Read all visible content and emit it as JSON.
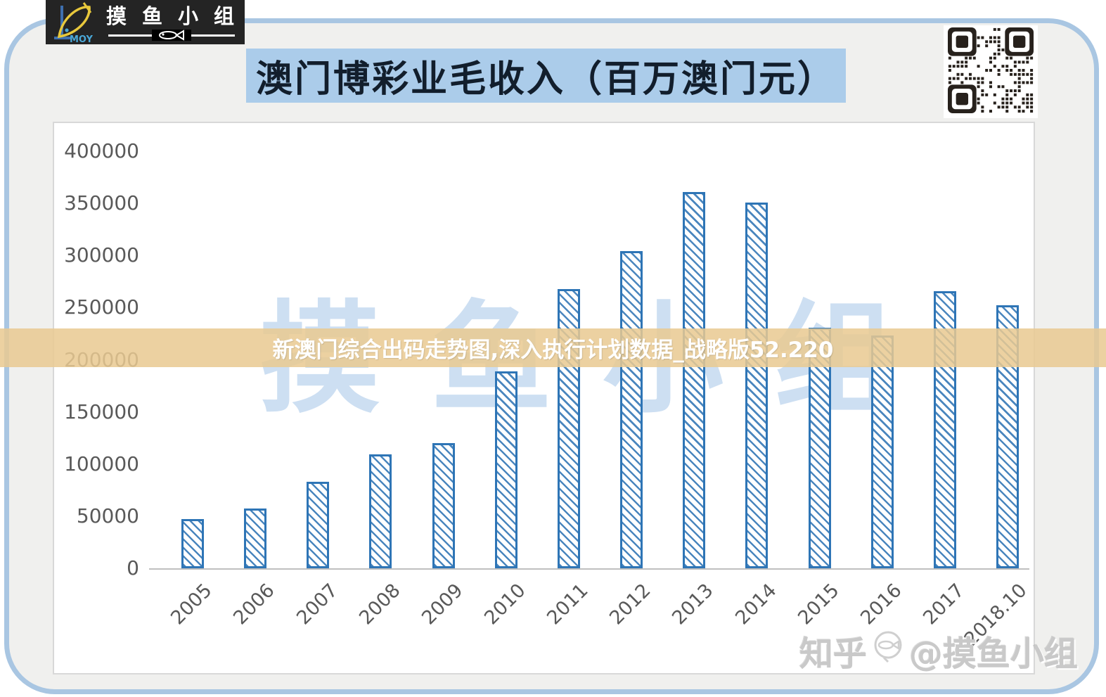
{
  "logo": {
    "brand": "MOYU",
    "group_name": "摸鱼小组"
  },
  "header": {
    "title": "澳门博彩业毛收入（百万澳门元）",
    "title_bg": "#abccea"
  },
  "overlay_banner": {
    "text": "新澳门综合出码走势图,深入执行计划数据_战略版52.220",
    "bg": "#e9c992",
    "text_color": "#ffffff"
  },
  "watermarks": {
    "chart": "摸鱼小组",
    "credit_site": "知乎",
    "credit_handle": "@摸鱼小组"
  },
  "chart_data": {
    "type": "bar",
    "title": "澳门博彩业毛收入（百万澳门元）",
    "categories": [
      "2005",
      "2006",
      "2007",
      "2008",
      "2009",
      "2010",
      "2011",
      "2012",
      "2013",
      "2014",
      "2015",
      "2016",
      "2017",
      "2018.10"
    ],
    "values": [
      47000,
      57000,
      83000,
      109000,
      120000,
      189000,
      268000,
      304000,
      361000,
      351000,
      231000,
      223000,
      266000,
      252000
    ],
    "xlabel": "",
    "ylabel": "",
    "ylim": [
      0,
      400000
    ],
    "yticks": [
      0,
      50000,
      100000,
      150000,
      200000,
      250000,
      300000,
      350000,
      400000
    ],
    "grid": false,
    "legend": false,
    "bar_outline_color": "#2e75b6",
    "bar_fill": "diagonal-hatch-pattern",
    "axis_text_color": "#595959"
  }
}
